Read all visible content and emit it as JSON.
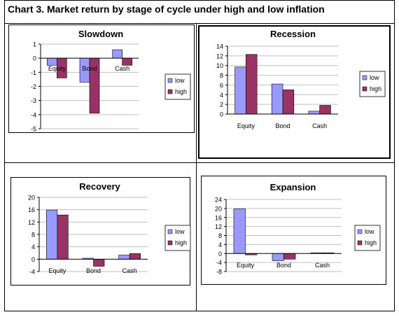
{
  "header": {
    "title": "Chart 3. Market return by stage of cycle under high and low inflation"
  },
  "colors": {
    "low": "#9999ff",
    "high": "#993366"
  },
  "chart_data": [
    {
      "type": "bar",
      "title": "Slowdown",
      "categories": [
        "Equity",
        "Bond",
        "Cash"
      ],
      "series": [
        {
          "name": "low",
          "values": [
            -0.5,
            -1.7,
            0.6
          ]
        },
        {
          "name": "high",
          "values": [
            -1.4,
            -3.9,
            -0.5
          ]
        }
      ],
      "ylim": [
        -5,
        1
      ],
      "yticks": [
        -5,
        -4,
        -3,
        -2,
        -1,
        0,
        1
      ],
      "category_labels_at_zero": true,
      "legend": "right"
    },
    {
      "type": "bar",
      "title": "Recession",
      "categories": [
        "Equity",
        "Bond",
        "Cash"
      ],
      "series": [
        {
          "name": "low",
          "values": [
            9.7,
            6.2,
            0.6
          ]
        },
        {
          "name": "high",
          "values": [
            12.3,
            5.0,
            1.8
          ]
        }
      ],
      "ylim": [
        0,
        14
      ],
      "yticks": [
        0,
        2,
        4,
        6,
        8,
        10,
        12,
        14
      ],
      "legend": "right"
    },
    {
      "type": "bar",
      "title": "Recovery",
      "categories": [
        "Equity",
        "Bond",
        "Cash"
      ],
      "series": [
        {
          "name": "low",
          "values": [
            15.9,
            0.3,
            1.3
          ]
        },
        {
          "name": "high",
          "values": [
            14.3,
            -2.3,
            1.8
          ]
        }
      ],
      "ylim": [
        -4,
        20
      ],
      "yticks": [
        -4,
        0,
        4,
        8,
        12,
        16,
        20
      ],
      "legend": "right"
    },
    {
      "type": "bar",
      "title": "Expansion",
      "categories": [
        "Equity",
        "Bond",
        "Cash"
      ],
      "series": [
        {
          "name": "low",
          "values": [
            19.8,
            -3.2,
            0.3
          ]
        },
        {
          "name": "high",
          "values": [
            -0.6,
            -2.5,
            0.3
          ]
        }
      ],
      "ylim": [
        -8,
        24
      ],
      "yticks": [
        -8,
        -4,
        0,
        4,
        8,
        12,
        16,
        20,
        24
      ],
      "legend": "right"
    }
  ]
}
